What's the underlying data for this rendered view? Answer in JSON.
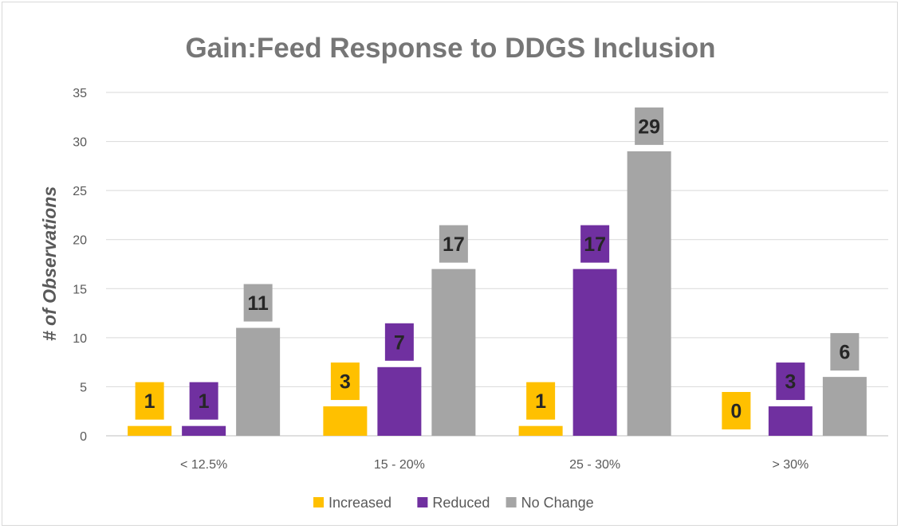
{
  "chart_data": {
    "type": "bar",
    "title": "Gain:Feed Response to DDGS Inclusion",
    "xlabel": "",
    "ylabel": "# of Observations",
    "categories": [
      "< 12.5%",
      "15 - 20%",
      "25 - 30%",
      "> 30%"
    ],
    "series": [
      {
        "name": "Increased",
        "color": "#FFC000",
        "values": [
          1,
          3,
          1,
          0
        ]
      },
      {
        "name": "Reduced",
        "color": "#7030A0",
        "values": [
          1,
          7,
          17,
          3
        ]
      },
      {
        "name": "No Change",
        "color": "#A5A5A5",
        "values": [
          11,
          17,
          29,
          6
        ]
      }
    ],
    "ylim": [
      0,
      35
    ],
    "yticks": [
      0,
      5,
      10,
      15,
      20,
      25,
      30,
      35
    ],
    "grid": true,
    "legend_position": "bottom",
    "data_labels": true
  }
}
